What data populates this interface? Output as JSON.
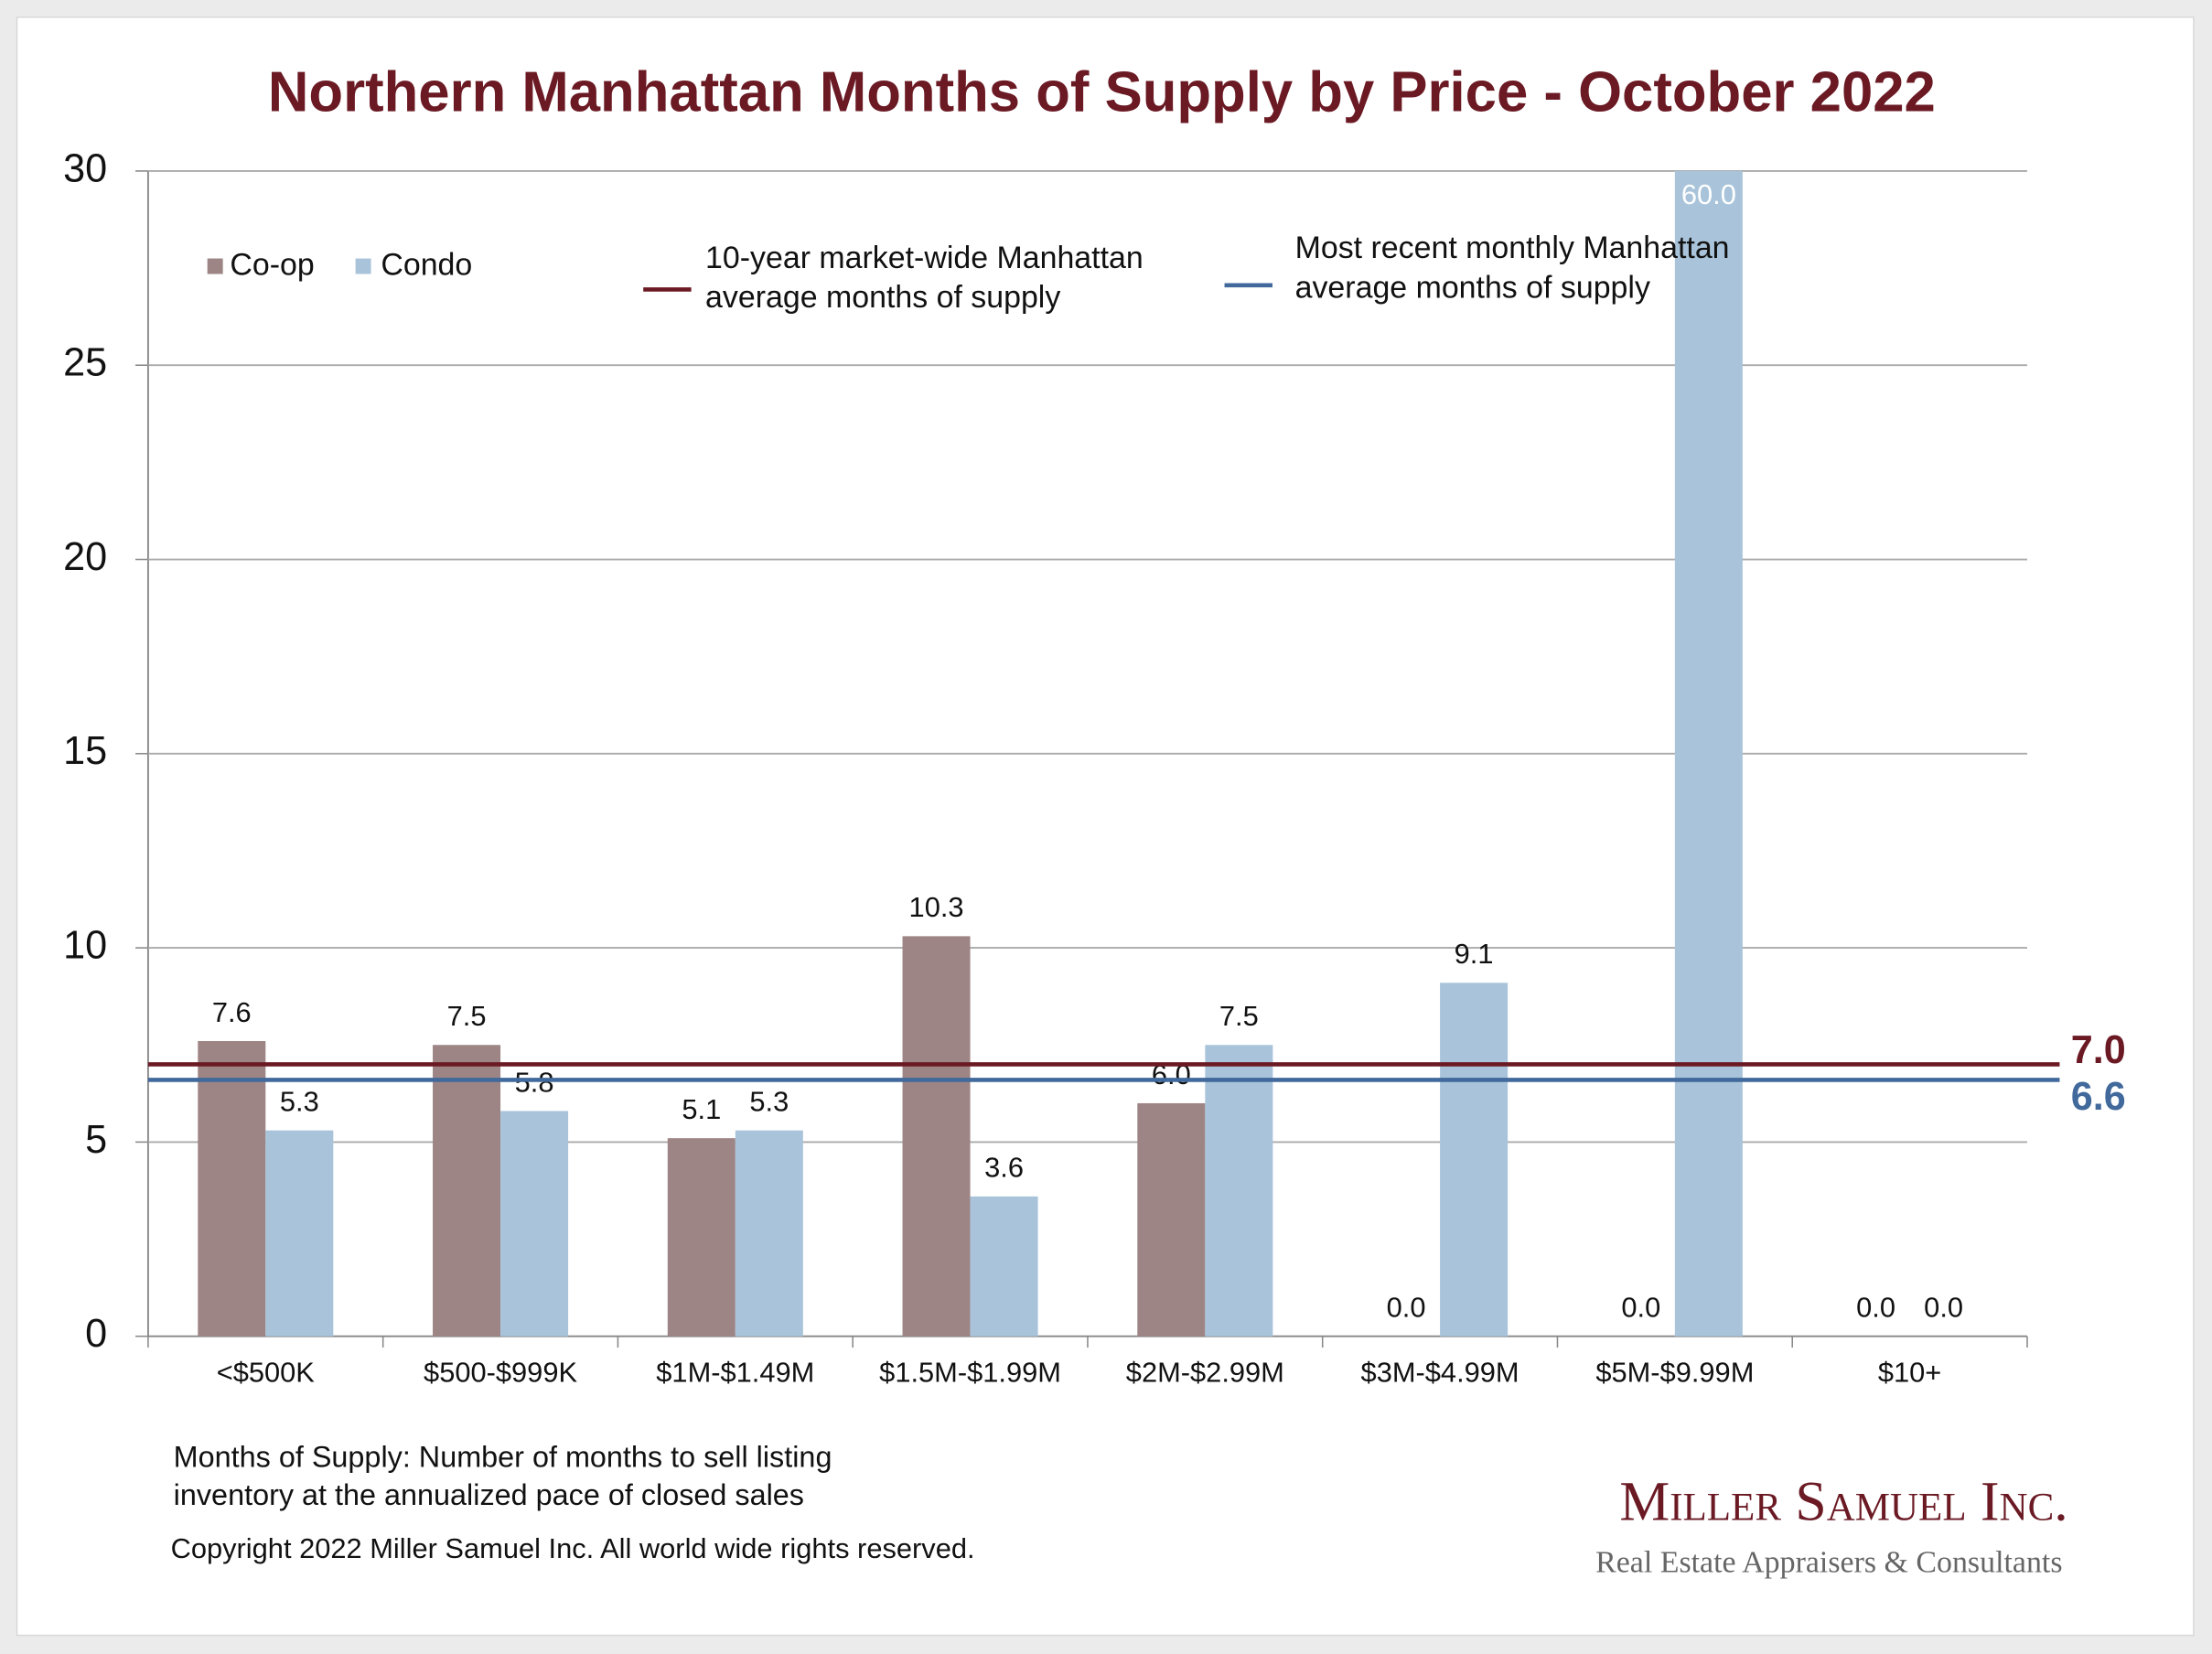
{
  "chart_data": {
    "type": "bar",
    "title": "Northern Manhattan Months of Supply by Price - October 2022",
    "categories": [
      "<$500K",
      "$500-$999K",
      "$1M-$1.49M",
      "$1.5M-$1.99M",
      "$2M-$2.99M",
      "$3M-$4.99M",
      "$5M-$9.99M",
      "$10+"
    ],
    "series": [
      {
        "name": "Co-op",
        "color": "#9e8585",
        "values": [
          7.6,
          7.5,
          5.1,
          10.3,
          6.0,
          0.0,
          0.0,
          0.0
        ],
        "value_labels": [
          "7.6",
          "7.5",
          "5.1",
          "10.3",
          "6.0",
          "0.0",
          "0.0",
          "0.0"
        ]
      },
      {
        "name": "Condo",
        "color": "#a9c4da",
        "values": [
          5.3,
          5.8,
          5.3,
          3.6,
          7.5,
          9.1,
          60.0,
          0.0
        ],
        "value_labels": [
          "5.3",
          "5.8",
          "5.3",
          "3.6",
          "7.5",
          "9.1",
          "60.0",
          "0.0"
        ]
      }
    ],
    "reference_lines": [
      {
        "name_lines": [
          "10-year market-wide Manhattan",
          "average months of supply"
        ],
        "value": 7.0,
        "value_label": "7.0",
        "color": "#6b1a24"
      },
      {
        "name_lines": [
          "Most recent monthly Manhattan",
          "average months of supply"
        ],
        "value": 6.6,
        "value_label": "6.6",
        "color": "#41699b"
      }
    ],
    "ylim": [
      0,
      30
    ],
    "yticks": [
      0,
      5,
      10,
      15,
      20,
      25,
      30
    ],
    "grid": true,
    "note": [
      "Months of Supply: Number of months to sell listing",
      "inventory at the annualized pace of closed sales"
    ],
    "copyright": "Copyright 2022 Miller Samuel Inc.  All world wide rights reserved.",
    "logo": {
      "name": "Miller Samuel Inc.",
      "tagline": "Real Estate Appraisers & Consultants"
    }
  }
}
